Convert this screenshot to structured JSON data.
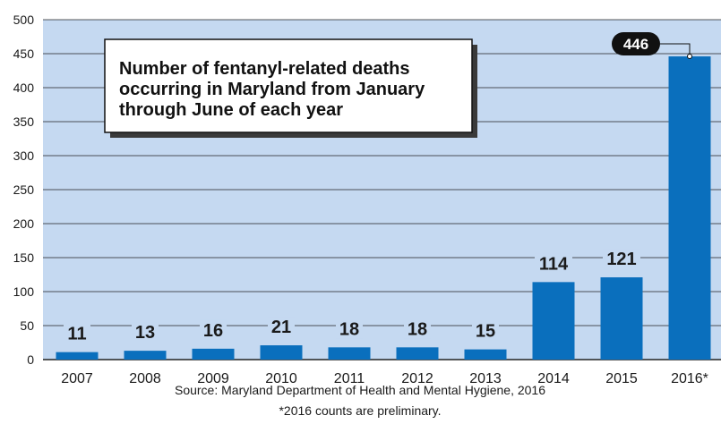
{
  "chart_data": {
    "type": "bar",
    "title": "Number of fentanyl-related deaths occurring in Maryland from January through June of each year",
    "title_lines": [
      "Number of fentanyl-related deaths",
      "occurring in Maryland from January",
      "through June of each year"
    ],
    "categories": [
      "2007",
      "2008",
      "2009",
      "2010",
      "2011",
      "2012",
      "2013",
      "2014",
      "2015",
      "2016*"
    ],
    "values": [
      11,
      13,
      16,
      21,
      18,
      18,
      15,
      114,
      121,
      446
    ],
    "data_labels": [
      "11",
      "13",
      "16",
      "21",
      "18",
      "18",
      "15",
      "114",
      "121",
      "446"
    ],
    "ylim": [
      0,
      500
    ],
    "yticks": [
      0,
      50,
      100,
      150,
      200,
      250,
      300,
      350,
      400,
      450,
      500
    ],
    "xlabel": "",
    "ylabel": "",
    "grid": true,
    "highlight_index": 9,
    "source": "Source: Maryland Department of Health and Mental Hygiene, 2016",
    "footnote": "*2016 counts are preliminary.",
    "colors": {
      "bar": "#0a6fbd",
      "plot_background": "#c5d9f1",
      "gridline": "#222222",
      "callout_background": "#111111"
    }
  }
}
